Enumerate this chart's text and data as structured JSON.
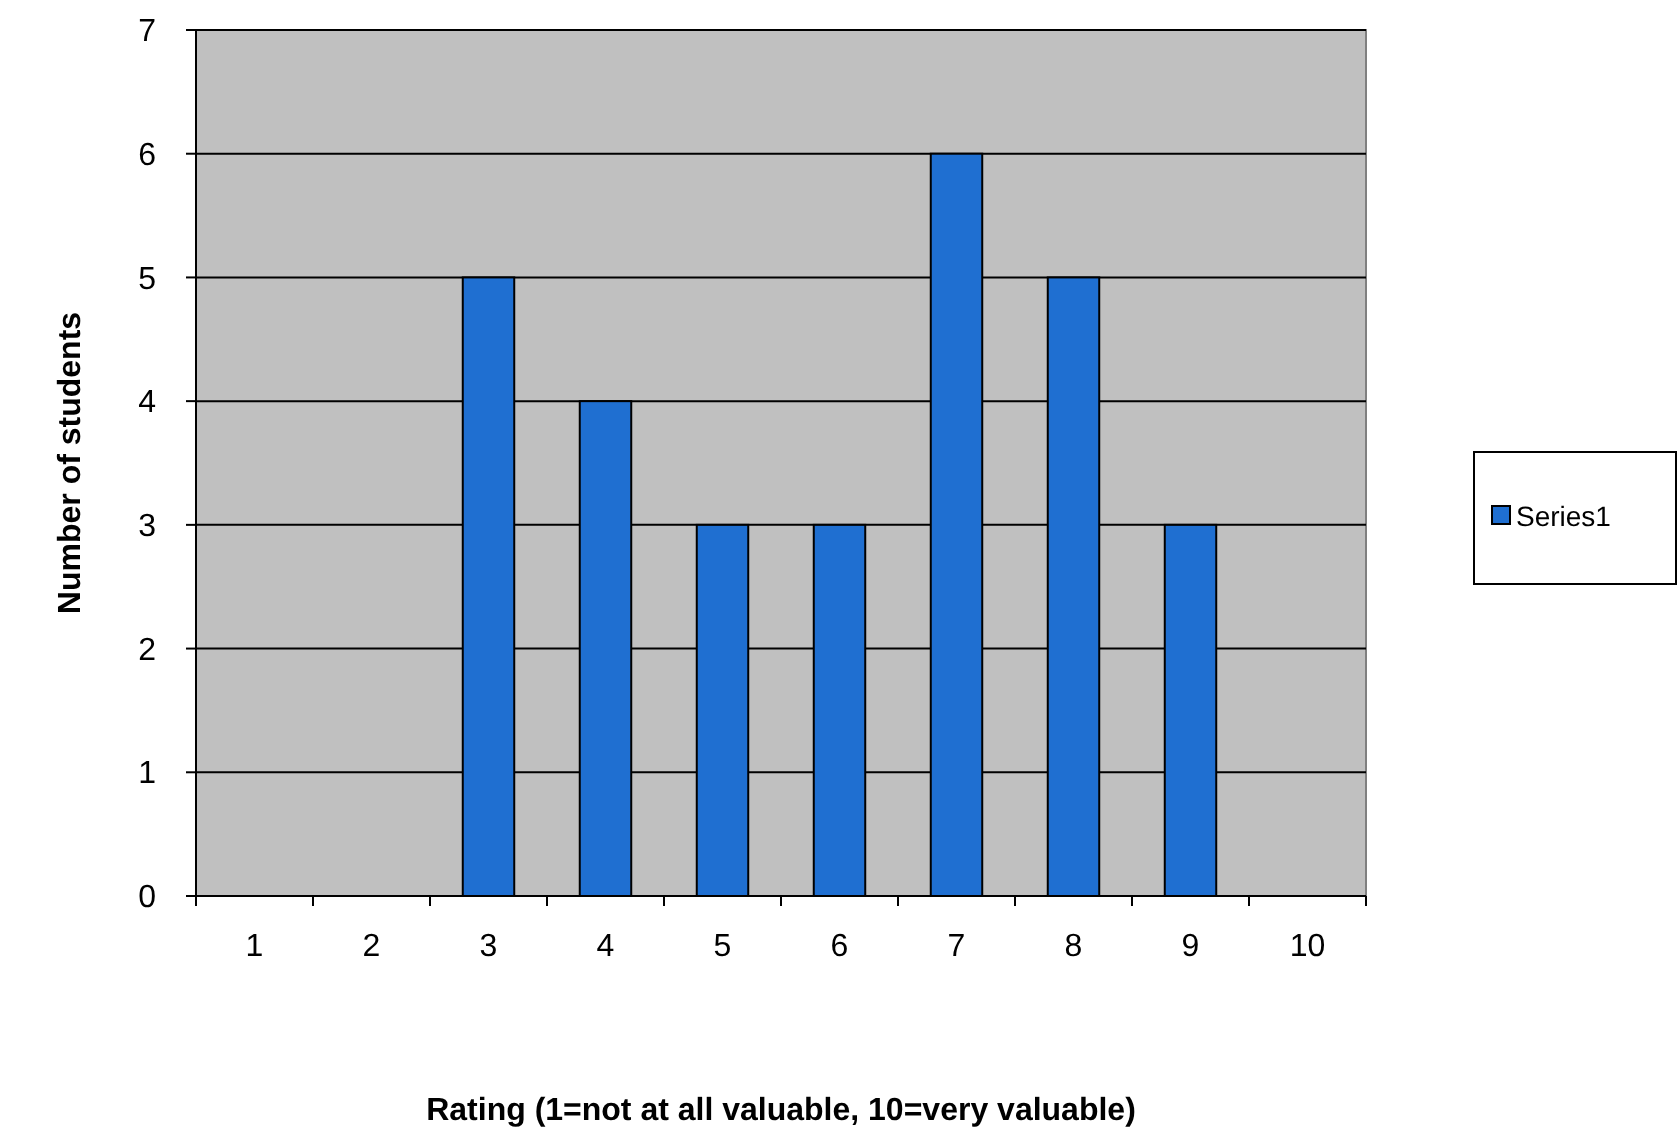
{
  "chart_data": {
    "type": "bar",
    "xlabel": "Rating (1=not at all valuable, 10=very valuable)",
    "ylabel": "Number of students",
    "categories": [
      "1",
      "2",
      "3",
      "4",
      "5",
      "6",
      "7",
      "8",
      "9",
      "10"
    ],
    "series": [
      {
        "name": "Series1",
        "color": "#1f6fd1",
        "values": [
          0,
          0,
          5,
          4,
          3,
          3,
          6,
          5,
          3,
          0
        ]
      }
    ],
    "ylim": [
      0,
      7
    ],
    "yticks": [
      0,
      1,
      2,
      3,
      4,
      5,
      6,
      7
    ],
    "grid": "y",
    "legend": "right"
  }
}
